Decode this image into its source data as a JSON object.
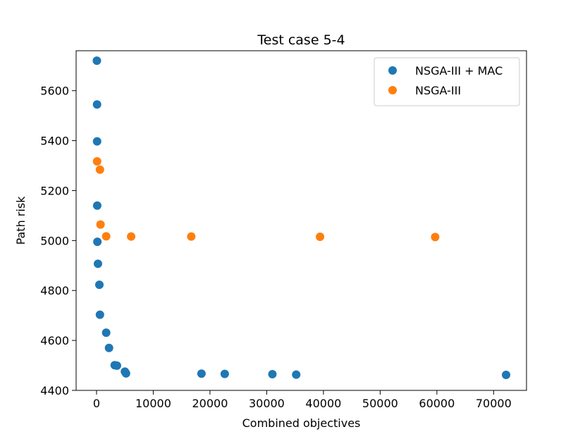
{
  "chart_data": {
    "type": "scatter",
    "title": "Test case 5-4",
    "xlabel": "Combined objectives",
    "ylabel": "Path risk",
    "xlim": [
      -3600,
      75800
    ],
    "ylim": [
      4400,
      5760
    ],
    "xticks": [
      0,
      10000,
      20000,
      30000,
      40000,
      50000,
      60000,
      70000
    ],
    "yticks": [
      4400,
      4600,
      4800,
      5000,
      5200,
      5400,
      5600
    ],
    "grid": false,
    "legend_position": "top-right",
    "series": [
      {
        "name": "NSGA-III + MAC",
        "color": "#1f77b4",
        "points": [
          [
            60,
            5720
          ],
          [
            90,
            5545
          ],
          [
            100,
            5397
          ],
          [
            120,
            5140
          ],
          [
            150,
            4995
          ],
          [
            250,
            4907
          ],
          [
            500,
            4823
          ],
          [
            600,
            4703
          ],
          [
            1700,
            4631
          ],
          [
            2200,
            4570
          ],
          [
            3200,
            4501
          ],
          [
            3600,
            4499
          ],
          [
            5000,
            4475
          ],
          [
            5200,
            4468
          ],
          [
            18500,
            4467
          ],
          [
            22600,
            4466
          ],
          [
            31000,
            4465
          ],
          [
            35200,
            4463
          ],
          [
            72200,
            4462
          ]
        ]
      },
      {
        "name": "NSGA-III",
        "color": "#ff7f0e",
        "points": [
          [
            100,
            5317
          ],
          [
            600,
            5284
          ],
          [
            700,
            5064
          ],
          [
            1700,
            5017
          ],
          [
            6100,
            5016
          ],
          [
            16700,
            5016
          ],
          [
            39400,
            5015
          ],
          [
            59700,
            5014
          ]
        ]
      }
    ]
  }
}
